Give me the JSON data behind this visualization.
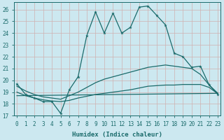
{
  "xlabel": "Humidex (Indice chaleur)",
  "bg_color": "#cce8f0",
  "line_color": "#1a6b6b",
  "grid_color": "#d0b0b0",
  "yticks": [
    17,
    18,
    19,
    20,
    21,
    22,
    23,
    24,
    25,
    26
  ],
  "xticks": [
    0,
    1,
    2,
    3,
    4,
    5,
    6,
    7,
    8,
    9,
    10,
    11,
    12,
    13,
    14,
    15,
    16,
    17,
    18,
    19,
    20,
    21,
    22,
    23
  ],
  "xlim": [
    -0.3,
    23.3
  ],
  "ylim": [
    17,
    26.6
  ],
  "line1_x": [
    0,
    1,
    2,
    3,
    4,
    5,
    6,
    7,
    8,
    9,
    10,
    11,
    12,
    13,
    14,
    15,
    16,
    17,
    18,
    19,
    20,
    21,
    22,
    23
  ],
  "line1_y": [
    19.7,
    18.8,
    18.5,
    18.2,
    18.2,
    17.2,
    19.2,
    20.3,
    23.8,
    25.8,
    24.0,
    25.7,
    24.0,
    24.5,
    26.2,
    26.3,
    25.5,
    24.7,
    22.3,
    22.0,
    21.1,
    21.2,
    19.6,
    18.8
  ],
  "line2_x": [
    0,
    1,
    2,
    3,
    4,
    5,
    6,
    7,
    8,
    9,
    10,
    11,
    12,
    13,
    14,
    15,
    16,
    17,
    18,
    19,
    20,
    21,
    22,
    23
  ],
  "line2_y": [
    19.5,
    19.1,
    18.8,
    18.6,
    18.5,
    18.4,
    18.7,
    19.0,
    19.4,
    19.8,
    20.1,
    20.3,
    20.5,
    20.7,
    20.9,
    21.1,
    21.2,
    21.3,
    21.2,
    21.1,
    21.0,
    20.5,
    19.6,
    18.9
  ],
  "line3_x": [
    0,
    1,
    2,
    3,
    4,
    5,
    6,
    7,
    8,
    9,
    10,
    11,
    12,
    13,
    14,
    15,
    16,
    17,
    18,
    19,
    20,
    21,
    22,
    23
  ],
  "line3_y": [
    19.0,
    18.7,
    18.5,
    18.35,
    18.25,
    18.2,
    18.3,
    18.5,
    18.65,
    18.8,
    18.9,
    19.0,
    19.1,
    19.2,
    19.35,
    19.5,
    19.55,
    19.6,
    19.6,
    19.65,
    19.65,
    19.65,
    19.4,
    18.85
  ],
  "line4_x": [
    0,
    23
  ],
  "line4_y": [
    18.7,
    18.9
  ]
}
